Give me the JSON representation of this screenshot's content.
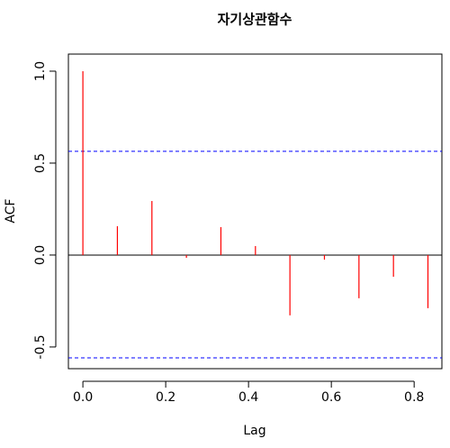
{
  "chart_data": {
    "type": "bar",
    "title": "자기상관함수",
    "x_label": "Lag",
    "y_label": "ACF",
    "x": [
      0,
      0.0833,
      0.1667,
      0.25,
      0.3333,
      0.4167,
      0.5,
      0.5833,
      0.6667,
      0.75,
      0.8333
    ],
    "values": [
      1.0,
      0.157,
      0.294,
      -0.015,
      0.152,
      0.049,
      -0.328,
      -0.025,
      -0.235,
      -0.118,
      -0.289
    ],
    "color": "#ff0000",
    "confidence_lines": [
      0.564,
      -0.559
    ],
    "confidence_color": "#0000ff",
    "xlim": [
      -0.035,
      0.867
    ],
    "ylim": [
      -0.618,
      1.093
    ],
    "xticks": [
      {
        "value": 0,
        "label": "0.0"
      },
      {
        "value": 0.2,
        "label": "0.2"
      },
      {
        "value": 0.4,
        "label": "0.4"
      },
      {
        "value": 0.6,
        "label": "0.6"
      },
      {
        "value": 0.8,
        "label": "0.8"
      }
    ],
    "yticks": [
      {
        "value": -0.5,
        "label": "-0.5"
      },
      {
        "value": 0,
        "label": "0.0"
      },
      {
        "value": 0.5,
        "label": "0.5"
      },
      {
        "value": 1.0,
        "label": "1.0"
      }
    ]
  }
}
